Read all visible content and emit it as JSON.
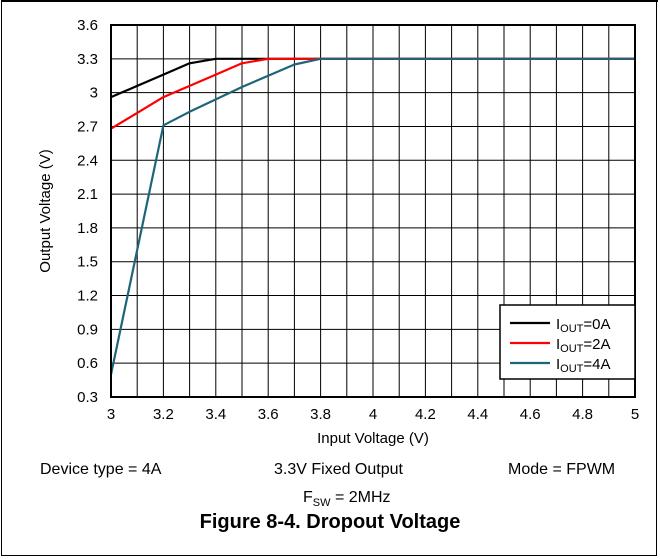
{
  "chart_data": {
    "type": "line",
    "title": "",
    "xlabel": "Input Voltage (V)",
    "ylabel": "Output Voltage (V)",
    "xlim": [
      3,
      5
    ],
    "ylim": [
      0.3,
      3.6
    ],
    "xticks": [
      3,
      3.2,
      3.4,
      3.6,
      3.8,
      4,
      4.2,
      4.4,
      4.6,
      4.8,
      5
    ],
    "yticks": [
      0.3,
      0.6,
      0.9,
      1.2,
      1.5,
      1.8,
      2.1,
      2.4,
      2.7,
      3,
      3.3,
      3.6
    ],
    "xtick_labels": [
      "3",
      "3.2",
      "3.4",
      "3.6",
      "3.8",
      "4",
      "4.2",
      "4.4",
      "4.6",
      "4.8",
      "5"
    ],
    "ytick_labels": [
      "0.3",
      "0.6",
      "0.9",
      "1.2",
      "1.5",
      "1.8",
      "2.1",
      "2.4",
      "2.7",
      "3",
      "3.3",
      "3.6"
    ],
    "x_minor_step": 0.1,
    "grid": true,
    "legend_position": "bottom-right",
    "series": [
      {
        "name": "IOUT=0A",
        "legend_main": "I",
        "legend_sub": "OUT",
        "legend_tail": "=0A",
        "color": "#000000",
        "x": [
          3.0,
          3.1,
          3.2,
          3.3,
          3.4,
          3.5,
          3.6,
          5.0
        ],
        "y": [
          2.96,
          3.06,
          3.16,
          3.26,
          3.3,
          3.3,
          3.3,
          3.3
        ]
      },
      {
        "name": "IOUT=2A",
        "legend_main": "I",
        "legend_sub": "OUT",
        "legend_tail": "=2A",
        "color": "#ff0000",
        "x": [
          3.0,
          3.1,
          3.2,
          3.3,
          3.4,
          3.5,
          3.6,
          3.8,
          5.0
        ],
        "y": [
          2.68,
          2.82,
          2.96,
          3.06,
          3.16,
          3.26,
          3.3,
          3.3,
          3.3
        ]
      },
      {
        "name": "IOUT=4A",
        "legend_main": "I",
        "legend_sub": "OUT",
        "legend_tail": "=4A",
        "color": "#1f6478",
        "x": [
          3.0,
          3.2,
          3.3,
          3.4,
          3.5,
          3.6,
          3.7,
          3.8,
          5.0
        ],
        "y": [
          0.5,
          2.71,
          2.83,
          2.94,
          3.05,
          3.15,
          3.25,
          3.3,
          3.3
        ]
      }
    ]
  },
  "conditions": {
    "device_type": "Device type = 4A",
    "output": "3.3V Fixed Output",
    "mode": "Mode = FPWM",
    "fsw_main": "F",
    "fsw_sub": "SW",
    "fsw_tail": " = 2MHz"
  },
  "caption": "Figure 8-4. Dropout Voltage"
}
